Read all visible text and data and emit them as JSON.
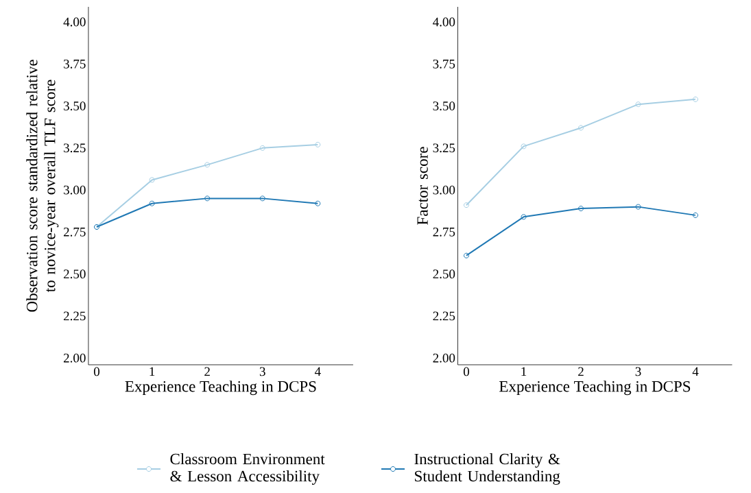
{
  "chart_data": [
    {
      "type": "line",
      "x": [
        0,
        1,
        2,
        3,
        4
      ],
      "xlabel": "Experience Teaching in DCPS",
      "ylabel": "Observation score standardized relative to novice-year overall TLF score",
      "xlim": [
        -0.15,
        4.64
      ],
      "ylim": [
        1.96,
        4.09
      ],
      "xticks": [
        0,
        1,
        2,
        3,
        4
      ],
      "yticks": [
        {
          "value": 2,
          "label": "2.00"
        },
        {
          "value": 2.25,
          "label": "2.25"
        },
        {
          "value": 2.5,
          "label": "2.50"
        },
        {
          "value": 2.75,
          "label": "2.75"
        },
        {
          "value": 3,
          "label": "3.00"
        },
        {
          "value": 3.25,
          "label": "3.25"
        },
        {
          "value": 3.5,
          "label": "3.50"
        },
        {
          "value": 3.75,
          "label": "3.75"
        },
        {
          "value": 4,
          "label": "4.00"
        }
      ],
      "marker": "circle",
      "line_style": "solid",
      "legend": "bottom",
      "series": [
        {
          "name": "Classroom Environment & Lesson Accessibility",
          "color": "#a6cee3",
          "values": [
            2.78,
            3.06,
            3.15,
            3.25,
            3.27
          ]
        },
        {
          "name": "Instructional Clarity & Student Understanding",
          "color": "#1f78b4",
          "values": [
            2.78,
            2.92,
            2.95,
            2.95,
            2.92
          ]
        }
      ]
    },
    {
      "type": "line",
      "x": [
        0,
        1,
        2,
        3,
        4
      ],
      "xlabel": "Experience Teaching in DCPS",
      "ylabel": "Factor score",
      "xlim": [
        -0.15,
        4.64
      ],
      "ylim": [
        1.96,
        4.09
      ],
      "xticks": [
        0,
        1,
        2,
        3,
        4
      ],
      "yticks": [
        {
          "value": 2,
          "label": "2.00"
        },
        {
          "value": 2.25,
          "label": "2.25"
        },
        {
          "value": 2.5,
          "label": "2.50"
        },
        {
          "value": 2.75,
          "label": "2.75"
        },
        {
          "value": 3,
          "label": "3.00"
        },
        {
          "value": 3.25,
          "label": "3.25"
        },
        {
          "value": 3.5,
          "label": "3.50"
        },
        {
          "value": 3.75,
          "label": "3.75"
        },
        {
          "value": 4,
          "label": "4.00"
        }
      ],
      "marker": "circle",
      "line_style": "solid",
      "series": [
        {
          "color": "#a6cee3",
          "values": [
            2.91,
            3.26,
            3.37,
            3.51,
            3.54
          ]
        },
        {
          "color": "#1f78b4",
          "values": [
            2.61,
            2.84,
            2.89,
            2.9,
            2.85
          ]
        }
      ]
    }
  ]
}
